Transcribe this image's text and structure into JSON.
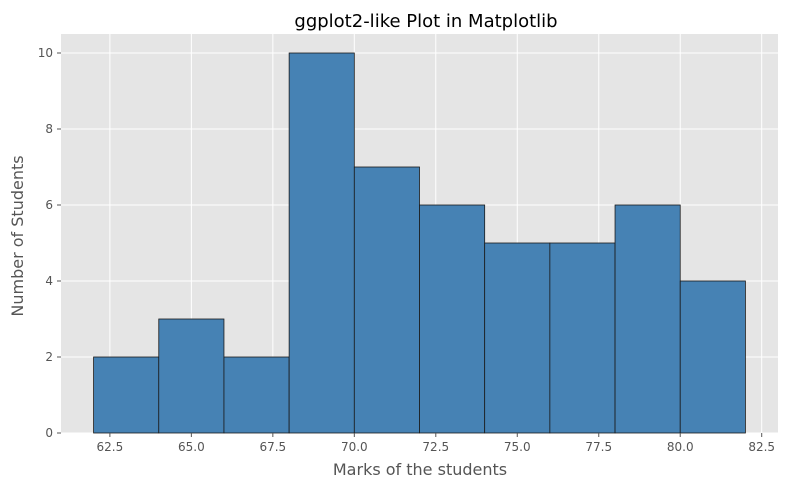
{
  "chart_data": {
    "type": "bar",
    "title": "ggplot2-like Plot in Matplotlib",
    "xlabel": "Marks of the students",
    "ylabel": "Number of Students",
    "bins": [
      {
        "start": 62,
        "end": 64,
        "count": 2
      },
      {
        "start": 64,
        "end": 66,
        "count": 3
      },
      {
        "start": 66,
        "end": 68,
        "count": 2
      },
      {
        "start": 68,
        "end": 70,
        "count": 10
      },
      {
        "start": 70,
        "end": 72,
        "count": 7
      },
      {
        "start": 72,
        "end": 74,
        "count": 6
      },
      {
        "start": 74,
        "end": 76,
        "count": 5
      },
      {
        "start": 76,
        "end": 78,
        "count": 5
      },
      {
        "start": 78,
        "end": 80,
        "count": 6
      },
      {
        "start": 80,
        "end": 82,
        "count": 4
      }
    ],
    "xlim": [
      61,
      83
    ],
    "ylim": [
      0,
      10.5
    ],
    "xticks": [
      62.5,
      65.0,
      67.5,
      70.0,
      72.5,
      75.0,
      77.5,
      80.0,
      82.5
    ],
    "xtick_labels": [
      "62.5",
      "65.0",
      "67.5",
      "70.0",
      "72.5",
      "75.0",
      "77.5",
      "80.0",
      "82.5"
    ],
    "yticks": [
      0,
      2,
      4,
      6,
      8,
      10
    ],
    "ytick_labels": [
      "0",
      "2",
      "4",
      "6",
      "8",
      "10"
    ],
    "grid": true,
    "colors": {
      "bar_fill": "#4682b4",
      "bar_edge": "#1a1a1a",
      "panel_bg": "#e5e5e5",
      "grid": "#ffffff"
    }
  }
}
